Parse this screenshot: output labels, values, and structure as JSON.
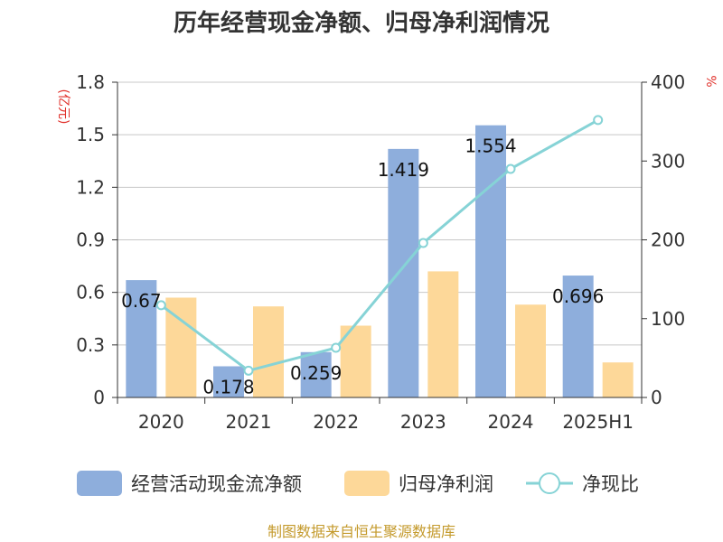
{
  "title": "历年经营现金净额、归母净利润情况",
  "left_unit": "(亿元)",
  "right_unit": "%",
  "source": "制图数据来自恒生聚源数据库",
  "colors": {
    "bar_a": "#8eaedc",
    "bar_b": "#fdd899",
    "line": "#86d3d6",
    "grid": "#c8c8c8",
    "axis": "#333333"
  },
  "chart_data": {
    "type": "bar",
    "categories": [
      "2020",
      "2021",
      "2022",
      "2023",
      "2024",
      "2025H1"
    ],
    "series": [
      {
        "name": "经营活动现金流净额",
        "type": "bar",
        "axis": "left",
        "values": [
          0.67,
          0.178,
          0.259,
          1.419,
          1.554,
          0.696
        ],
        "data_labels": [
          "0.67",
          "0.178",
          "0.259",
          "1.419",
          "1.554",
          "0.696"
        ]
      },
      {
        "name": "归母净利润",
        "type": "bar",
        "axis": "left",
        "values": [
          0.57,
          0.52,
          0.41,
          0.72,
          0.53,
          0.2
        ]
      },
      {
        "name": "净现比",
        "type": "line",
        "axis": "right",
        "values": [
          117,
          34,
          63,
          196,
          290,
          352
        ]
      }
    ],
    "left_axis": {
      "ylim": [
        0,
        1.8
      ],
      "ticks": [
        "0",
        "0.3",
        "0.6",
        "0.9",
        "1.2",
        "1.5",
        "1.8"
      ]
    },
    "right_axis": {
      "ylim": [
        0,
        400
      ],
      "ticks": [
        "0",
        "100",
        "200",
        "300",
        "400"
      ]
    },
    "grid": true,
    "legend": "bottom"
  }
}
